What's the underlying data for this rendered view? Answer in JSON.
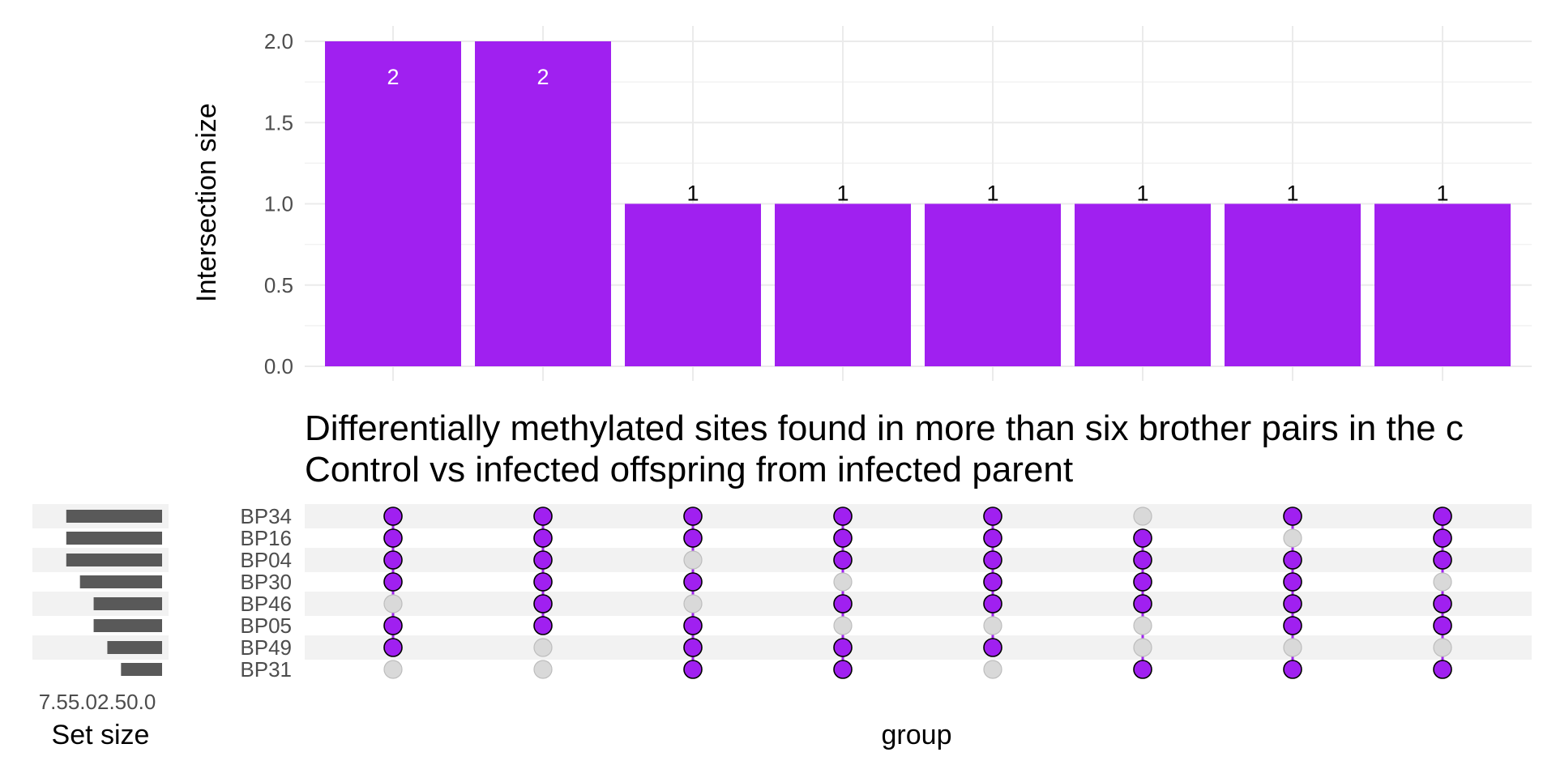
{
  "chart_data": {
    "type": "bar",
    "title": "Differentially methylated sites found in more than six brother pairs in the c",
    "subtitle": "Control vs infected offspring from infected parent",
    "ylabel": "Intersection size",
    "xlabel": "group",
    "set_size_label": "Set size",
    "ylim": [
      0,
      2
    ],
    "yticks": [
      "0.0",
      "0.5",
      "1.0",
      "1.5",
      "2.0"
    ],
    "set_size_ticks": [
      "7.5",
      "5.0",
      "2.5",
      "0.0"
    ],
    "set_size_ticks_concat": "7.55.02.50.0",
    "set_size_max": 9,
    "bar_color": "#A020F0",
    "set_bar_color": "#595959",
    "inactive_dot_color": "#d9d9d9",
    "grid": true,
    "sets": [
      "BP34",
      "BP16",
      "BP04",
      "BP30",
      "BP46",
      "BP05",
      "BP49",
      "BP31"
    ],
    "set_sizes": [
      7,
      7,
      7,
      6,
      5,
      5,
      4,
      3
    ],
    "intersections": [
      {
        "size": 2,
        "label": "2",
        "members": [
          "BP34",
          "BP16",
          "BP04",
          "BP30",
          "BP05",
          "BP49"
        ]
      },
      {
        "size": 2,
        "label": "2",
        "members": [
          "BP34",
          "BP16",
          "BP04",
          "BP30",
          "BP46",
          "BP05"
        ]
      },
      {
        "size": 1,
        "label": "1",
        "members": [
          "BP34",
          "BP16",
          "BP30",
          "BP05",
          "BP49",
          "BP31"
        ]
      },
      {
        "size": 1,
        "label": "1",
        "members": [
          "BP34",
          "BP16",
          "BP04",
          "BP46",
          "BP49",
          "BP31"
        ]
      },
      {
        "size": 1,
        "label": "1",
        "members": [
          "BP34",
          "BP16",
          "BP04",
          "BP30",
          "BP46",
          "BP49"
        ]
      },
      {
        "size": 1,
        "label": "1",
        "members": [
          "BP16",
          "BP04",
          "BP30",
          "BP46",
          "BP31"
        ]
      },
      {
        "size": 1,
        "label": "1",
        "members": [
          "BP34",
          "BP04",
          "BP30",
          "BP46",
          "BP05",
          "BP31"
        ]
      },
      {
        "size": 1,
        "label": "1",
        "members": [
          "BP34",
          "BP16",
          "BP04",
          "BP46",
          "BP05",
          "BP31"
        ]
      }
    ]
  }
}
